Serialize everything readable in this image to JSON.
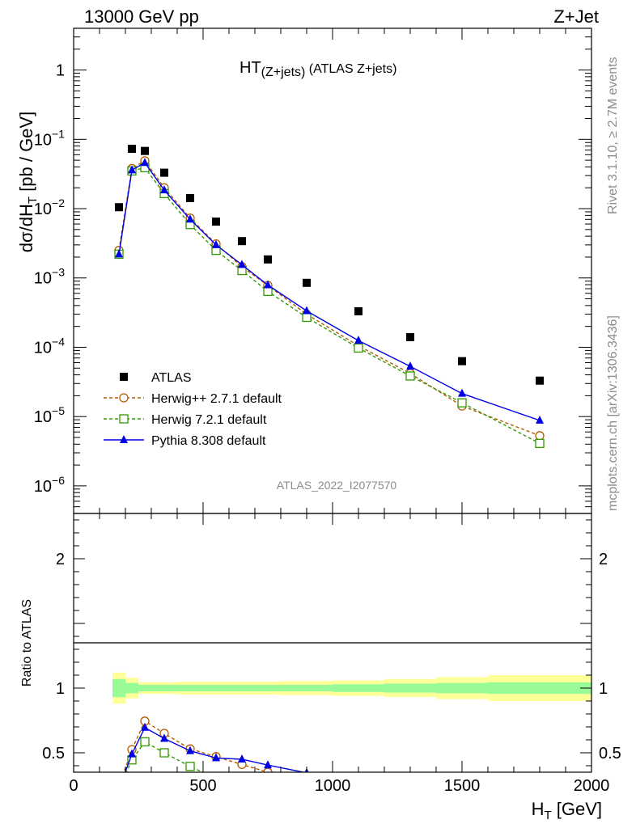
{
  "header": {
    "left": "13000 GeV pp",
    "right": "Z+Jet"
  },
  "side_labels": {
    "rivet": "Rivet 3.1.10, ≥ 2.7M events",
    "mcplots": "mcplots.cern.ch [arXiv:1306.3436]"
  },
  "watermark": "ATLAS_2022_I2077570",
  "chart_data": [
    {
      "type": "scatter",
      "panel": "main",
      "title": "HT",
      "title_sub": "(Z+jets)",
      "title_suffix": " (ATLAS Z+jets)",
      "ylabel_main": "dσ/dH",
      "ylabel_sub": "T",
      "ylabel_unit": " [pb / GeV]",
      "yscale": "log",
      "xlim": [
        0,
        2000
      ],
      "ylim": [
        4e-07,
        4.0
      ],
      "ytick_labels": [
        {
          "value": 1,
          "base": "1",
          "exp": ""
        },
        {
          "value": 0.1,
          "base": "10",
          "exp": "−1"
        },
        {
          "value": 0.01,
          "base": "10",
          "exp": "−2"
        },
        {
          "value": 0.001,
          "base": "10",
          "exp": "−3"
        },
        {
          "value": 0.0001,
          "base": "10",
          "exp": "−4"
        },
        {
          "value": 1e-05,
          "base": "10",
          "exp": "−5"
        },
        {
          "value": 1e-06,
          "base": "10",
          "exp": "−6"
        }
      ],
      "legend_position": "bottom-left",
      "series": [
        {
          "name": "ATLAS",
          "marker": "square-filled",
          "color": "#000000",
          "x": [
            175,
            225,
            275,
            350,
            450,
            550,
            650,
            750,
            900,
            1100,
            1300,
            1500,
            1800
          ],
          "y": [
            0.0105,
            0.073,
            0.068,
            0.033,
            0.0142,
            0.0065,
            0.0034,
            0.00185,
            0.00085,
            0.00033,
            0.00014,
            6.3e-05,
            3.3e-05
          ]
        },
        {
          "name": "Herwig++ 2.7.1 default",
          "marker": "circle-open",
          "line": "dashed",
          "color": "#b35900",
          "x": [
            175,
            225,
            275,
            350,
            450,
            550,
            650,
            750,
            900,
            1100,
            1300,
            1500,
            1800
          ],
          "y": [
            0.0025,
            0.038,
            0.049,
            0.02,
            0.0073,
            0.0031,
            0.00145,
            0.00078,
            0.0003,
            0.000105,
            4.2e-05,
            1.42e-05,
            5.3e-06
          ]
        },
        {
          "name": "Herwig 7.2.1 default",
          "marker": "square-open",
          "line": "dashed",
          "color": "#339900",
          "x": [
            175,
            225,
            275,
            350,
            450,
            550,
            650,
            750,
            900,
            1100,
            1300,
            1500,
            1800
          ],
          "y": [
            0.0022,
            0.035,
            0.039,
            0.0165,
            0.0059,
            0.0025,
            0.00128,
            0.00064,
            0.00027,
            9.75e-05,
            3.85e-05,
            1.58e-05,
            4.1e-06
          ]
        },
        {
          "name": "Pythia 8.308 default",
          "marker": "triangle-filled",
          "line": "solid",
          "color": "#0000e6",
          "x": [
            175,
            225,
            275,
            350,
            450,
            550,
            650,
            750,
            900,
            1100,
            1300,
            1500,
            1800
          ],
          "y": [
            0.0022,
            0.036,
            0.046,
            0.0185,
            0.007,
            0.003,
            0.00155,
            0.00079,
            0.000335,
            0.000125,
            5.3e-05,
            2.15e-05,
            8.8e-06
          ]
        }
      ]
    },
    {
      "type": "line",
      "panel": "ratio",
      "ylabel": "Ratio to ATLAS",
      "xlabel_main": "H",
      "xlabel_sub": "T",
      "xlabel_unit": " [GeV]",
      "xlim": [
        0,
        2000
      ],
      "ylim": [
        0.35,
        2.35
      ],
      "xtick_labels": [
        "0",
        "500",
        "1000",
        "1500",
        "2000"
      ],
      "xtick_values": [
        0,
        500,
        1000,
        1500,
        2000
      ],
      "ytick_labels": [
        "0.5",
        "1",
        "2"
      ],
      "ytick_values": [
        0.5,
        1,
        2
      ],
      "bands": {
        "edges": [
          150,
          200,
          250,
          300,
          400,
          500,
          600,
          700,
          800,
          1000,
          1200,
          1400,
          1600,
          2000
        ],
        "inner_halfwidth": [
          0.07,
          0.04,
          0.025,
          0.025,
          0.025,
          0.025,
          0.025,
          0.025,
          0.025,
          0.03,
          0.035,
          0.04,
          0.045
        ],
        "outer_halfwidth": [
          0.12,
          0.08,
          0.045,
          0.045,
          0.05,
          0.05,
          0.05,
          0.05,
          0.055,
          0.06,
          0.07,
          0.085,
          0.1
        ],
        "inner_color": "#98fb98",
        "outer_color": "#ffff99"
      },
      "series": [
        {
          "name": "Herwig++ 2.7.1 default",
          "marker": "circle-open",
          "line": "dashed",
          "color": "#b35900",
          "x": [
            175,
            225,
            275,
            350,
            450,
            550,
            650,
            750,
            900
          ],
          "y": [
            0.24,
            0.525,
            0.745,
            0.65,
            0.53,
            0.47,
            0.41,
            0.35,
            0.3
          ]
        },
        {
          "name": "Herwig 7.2.1 default",
          "marker": "square-open",
          "line": "dashed",
          "color": "#339900",
          "x": [
            175,
            225,
            275,
            350,
            450,
            550
          ],
          "y": [
            0.22,
            0.445,
            0.585,
            0.5,
            0.395,
            0.3
          ]
        },
        {
          "name": "Pythia 8.308 default",
          "marker": "triangle-filled",
          "line": "solid",
          "color": "#0000e6",
          "x": [
            175,
            225,
            275,
            350,
            450,
            550,
            650,
            750,
            900,
            1000
          ],
          "y": [
            0.22,
            0.49,
            0.695,
            0.61,
            0.515,
            0.46,
            0.45,
            0.405,
            0.345,
            0.3
          ]
        }
      ]
    }
  ]
}
